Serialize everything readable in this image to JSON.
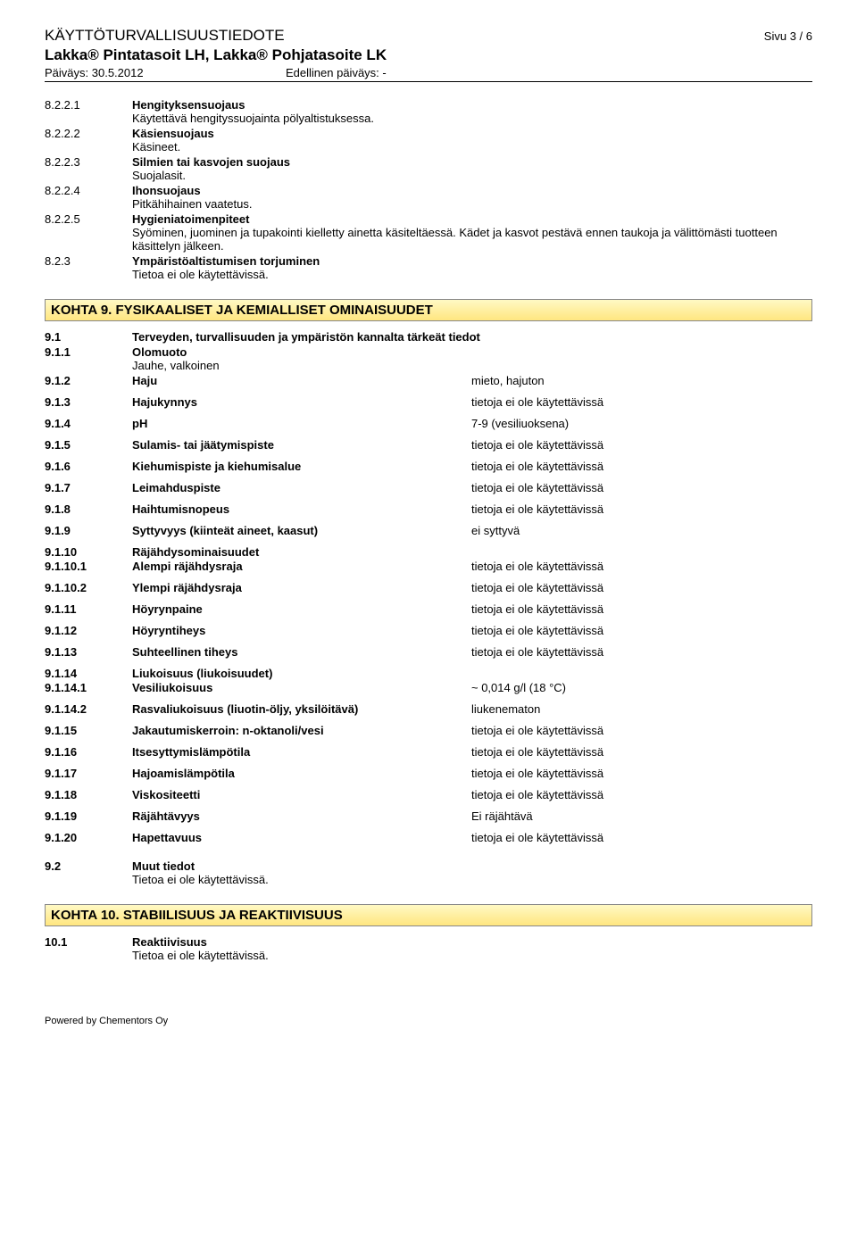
{
  "header": {
    "doc_type": "KÄYTTÖTURVALLISUUSTIEDOTE",
    "page_info": "Sivu 3 / 6",
    "product": "Lakka® Pintatasoit LH, Lakka® Pohjatasoite LK",
    "date_label": "Päiväys: 30.5.2012",
    "prev_date": "Edellinen päiväys: -"
  },
  "section8": {
    "items": [
      {
        "num": "8.2.2.1",
        "label": "Hengityksensuojaus",
        "desc": "Käytettävä hengityssuojainta pölyaltistuksessa."
      },
      {
        "num": "8.2.2.2",
        "label": "Käsiensuojaus",
        "desc": "Käsineet."
      },
      {
        "num": "8.2.2.3",
        "label": "Silmien tai kasvojen suojaus",
        "desc": "Suojalasit."
      },
      {
        "num": "8.2.2.4",
        "label": "Ihonsuojaus",
        "desc": "Pitkähihainen vaatetus."
      },
      {
        "num": "8.2.2.5",
        "label": "Hygieniatoimenpiteet",
        "desc": "Syöminen, juominen ja tupakointi kielletty ainetta käsiteltäessä. Kädet ja kasvot pestävä ennen taukoja ja välittömästi tuotteen käsittelyn jälkeen."
      },
      {
        "num": "8.2.3",
        "label": "Ympäristöaltistumisen torjuminen",
        "desc": "Tietoa ei ole käytettävissä."
      }
    ]
  },
  "section9": {
    "heading": "KOHTA 9. FYSIKAALISET JA KEMIALLISET OMINAISUUDET",
    "intro": [
      {
        "num": "9.1",
        "label": "Terveyden, turvallisuuden ja ympäristön kannalta tärkeät tiedot"
      },
      {
        "num": "9.1.1",
        "label": "Olomuoto",
        "desc": "Jauhe, valkoinen"
      }
    ],
    "props": [
      {
        "num": "9.1.2",
        "label": "Haju",
        "value": "mieto, hajuton"
      },
      {
        "num": "9.1.3",
        "label": "Hajukynnys",
        "value": "tietoja ei ole käytettävissä"
      },
      {
        "num": "9.1.4",
        "label": "pH",
        "value": "7-9 (vesiliuoksena)"
      },
      {
        "num": "9.1.5",
        "label": "Sulamis- tai jäätymispiste",
        "value": "tietoja ei ole käytettävissä"
      },
      {
        "num": "9.1.6",
        "label": "Kiehumispiste ja kiehumisalue",
        "value": "tietoja ei ole käytettävissä"
      },
      {
        "num": "9.1.7",
        "label": "Leimahduspiste",
        "value": "tietoja ei ole käytettävissä"
      },
      {
        "num": "9.1.8",
        "label": "Haihtumisnopeus",
        "value": "tietoja ei ole käytettävissä"
      },
      {
        "num": "9.1.9",
        "label": "Syttyvyys (kiinteät aineet, kaasut)",
        "value": "ei syttyvä"
      }
    ],
    "sub1": {
      "num": "9.1.10",
      "label": "Räjähdysominaisuudet"
    },
    "props2": [
      {
        "num": "9.1.10.1",
        "label": "Alempi räjähdysraja",
        "value": "tietoja ei ole käytettävissä"
      },
      {
        "num": "9.1.10.2",
        "label": "Ylempi räjähdysraja",
        "value": "tietoja ei ole käytettävissä"
      },
      {
        "num": "9.1.11",
        "label": "Höyrynpaine",
        "value": "tietoja ei ole käytettävissä"
      },
      {
        "num": "9.1.12",
        "label": "Höyryntiheys",
        "value": "tietoja ei ole käytettävissä"
      },
      {
        "num": "9.1.13",
        "label": "Suhteellinen tiheys",
        "value": "tietoja ei ole käytettävissä"
      }
    ],
    "sub2": {
      "num": "9.1.14",
      "label": "Liukoisuus (liukoisuudet)"
    },
    "props3": [
      {
        "num": "9.1.14.1",
        "label": "Vesiliukoisuus",
        "value": "~ 0,014 g/l (18 °C)"
      },
      {
        "num": "9.1.14.2",
        "label": "Rasvaliukoisuus (liuotin-öljy, yksilöitävä)",
        "value": "liukenematon"
      },
      {
        "num": "9.1.15",
        "label": "Jakautumiskerroin: n-oktanoli/vesi",
        "value": "tietoja ei ole käytettävissä"
      },
      {
        "num": "9.1.16",
        "label": "Itsesyttymislämpötila",
        "value": "tietoja ei ole käytettävissä"
      },
      {
        "num": "9.1.17",
        "label": "Hajoamislämpötila",
        "value": "tietoja ei ole käytettävissä"
      },
      {
        "num": "9.1.18",
        "label": "Viskositeetti",
        "value": "tietoja ei ole käytettävissä"
      },
      {
        "num": "9.1.19",
        "label": "Räjähtävyys",
        "value": "Ei räjähtävä"
      },
      {
        "num": "9.1.20",
        "label": "Hapettavuus",
        "value": "tietoja ei ole käytettävissä"
      }
    ],
    "other": {
      "num": "9.2",
      "label": "Muut tiedot",
      "desc": "Tietoa ei ole käytettävissä."
    }
  },
  "section10": {
    "heading": "KOHTA 10. STABIILISUUS JA REAKTIIVISUUS",
    "item": {
      "num": "10.1",
      "label": "Reaktiivisuus",
      "desc": "Tietoa ei ole käytettävissä."
    }
  },
  "footer": "Powered by Chementors Oy"
}
